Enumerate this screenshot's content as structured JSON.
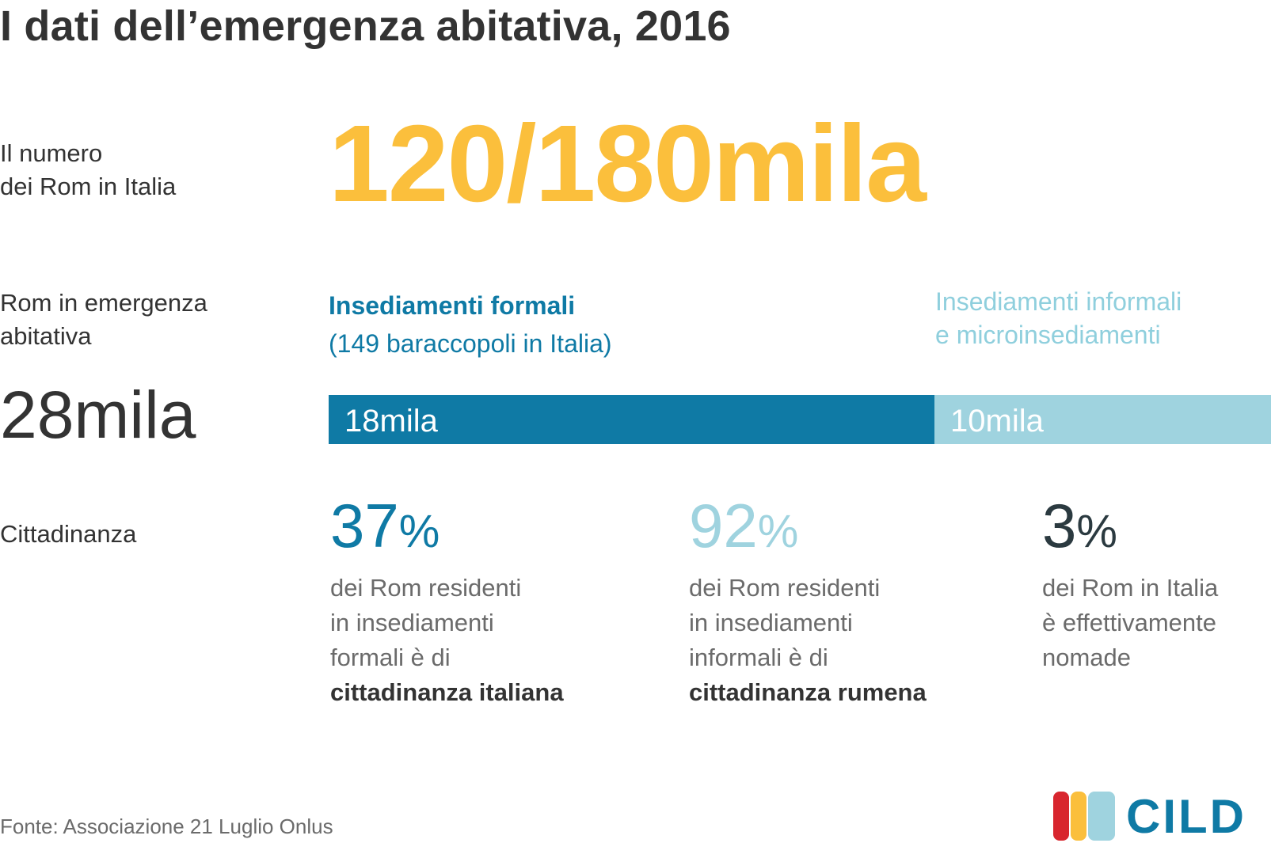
{
  "title": "I dati dell’emergenza abitativa, 2016",
  "rows": {
    "numero_rom": {
      "label_line1": "Il numero",
      "label_line2": "dei Rom in Italia",
      "value": "120/180mila"
    },
    "emergenza": {
      "label_line1": "Rom in emergenza",
      "label_line2": "abitativa",
      "total": "28mila"
    },
    "cittadinanza": {
      "label": "Cittadinanza"
    }
  },
  "chart_data": {
    "type": "bar",
    "orientation": "horizontal-stacked",
    "title": "",
    "categories": [
      "Insediamenti formali",
      "Insediamenti informali e microinsediamenti"
    ],
    "values": [
      18,
      10
    ],
    "unit": "mila",
    "total": 28,
    "value_labels": [
      "18mila",
      "10mila"
    ],
    "headers": {
      "formal_line1": "Insediamenti formali",
      "formal_line2": "(149 baraccopoli in Italia)",
      "informal_line1": "Insediamenti informali",
      "informal_line2": "e microinsediamenti"
    },
    "colors": [
      "#0f7aa5",
      "#9fd3df"
    ]
  },
  "stats": [
    {
      "value": "37",
      "sign": "%",
      "color": "#0f7aa5",
      "line1": "dei Rom residenti",
      "line2": "in insediamenti",
      "line3": "formali è di",
      "emphasis": "cittadinanza italiana"
    },
    {
      "value": "92",
      "sign": "%",
      "color": "#9fd3df",
      "line1": "dei Rom residenti",
      "line2": "in insediamenti",
      "line3": "informali è di",
      "emphasis": "cittadinanza rumena"
    },
    {
      "value": "3",
      "sign": "%",
      "color": "#2b3a40",
      "line1": "dei Rom in Italia",
      "line2": "è effettivamente",
      "line3": "nomade",
      "emphasis": ""
    }
  ],
  "source": "Fonte: Associazione 21 Luglio Onlus",
  "logo": {
    "text": "CILD",
    "colors": [
      "#d8262e",
      "#fbbf3c",
      "#9fd3df"
    ]
  }
}
